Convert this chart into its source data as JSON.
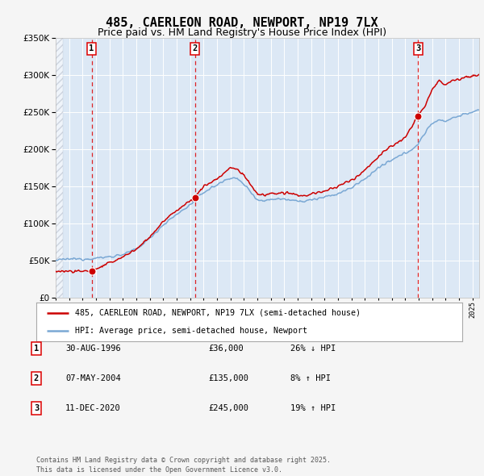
{
  "title": "485, CAERLEON ROAD, NEWPORT, NP19 7LX",
  "subtitle": "Price paid vs. HM Land Registry's House Price Index (HPI)",
  "legend_line1": "485, CAERLEON ROAD, NEWPORT, NP19 7LX (semi-detached house)",
  "legend_line2": "HPI: Average price, semi-detached house, Newport",
  "footer": "Contains HM Land Registry data © Crown copyright and database right 2025.\nThis data is licensed under the Open Government Licence v3.0.",
  "sale_points": [
    {
      "num": 1,
      "date": "30-AUG-1996",
      "price": 36000,
      "year": 1996.67,
      "hpi_pct": "26% ↓ HPI"
    },
    {
      "num": 2,
      "date": "07-MAY-2004",
      "price": 135000,
      "year": 2004.35,
      "hpi_pct": "8% ↑ HPI"
    },
    {
      "num": 3,
      "date": "11-DEC-2020",
      "price": 245000,
      "year": 2020.95,
      "hpi_pct": "19% ↑ HPI"
    }
  ],
  "ylim": [
    0,
    350000
  ],
  "xlim_start": 1994.0,
  "xlim_end": 2025.5,
  "background_color": "#f5f5f5",
  "plot_bg_color": "#dce8f5",
  "red_color": "#cc0000",
  "blue_color": "#7aa8d4",
  "dashed_red": "#dd0000",
  "grid_color": "#ffffff",
  "title_fontsize": 11,
  "subtitle_fontsize": 9
}
